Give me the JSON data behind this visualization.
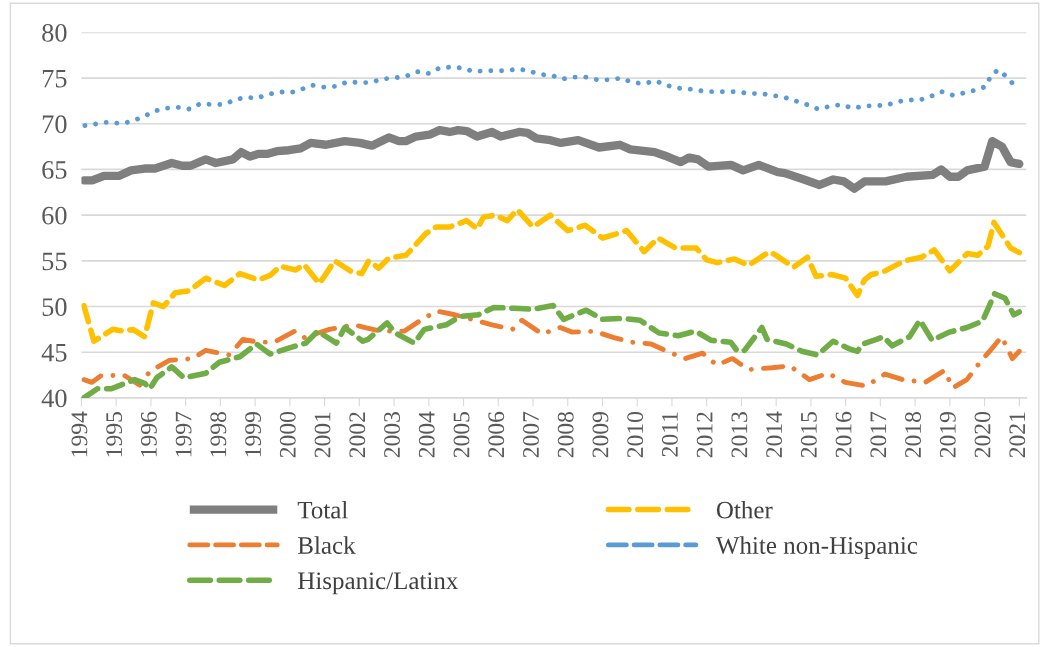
{
  "chart_data": {
    "type": "line",
    "xlim": [
      1994,
      2021.2
    ],
    "xticks": [
      1994,
      1995,
      1996,
      1997,
      1998,
      1999,
      2000,
      2001,
      2002,
      2003,
      2004,
      2005,
      2006,
      2007,
      2008,
      2009,
      2010,
      2011,
      2012,
      2013,
      2014,
      2015,
      2016,
      2017,
      2018,
      2019,
      2020,
      2021
    ],
    "ylim": [
      40,
      80
    ],
    "yticks": [
      40,
      45,
      50,
      55,
      60,
      65,
      70,
      75,
      80
    ],
    "grid": "y",
    "legend": "bottom",
    "series": [
      {
        "name": "Total",
        "color": "#7f7f7f",
        "line_style": "solid",
        "x": [
          1994.07,
          1994.31,
          1994.65,
          1995.09,
          1995.43,
          1995.82,
          1996.12,
          1996.6,
          1996.9,
          1997.14,
          1997.58,
          1997.87,
          1998.36,
          1998.6,
          1998.85,
          1999.09,
          1999.34,
          1999.63,
          1999.97,
          2000.31,
          2000.6,
          2001.04,
          2001.58,
          2002.02,
          2002.36,
          2002.85,
          2003.14,
          2003.34,
          2003.63,
          2004.02,
          2004.31,
          2004.6,
          2004.85,
          2005.09,
          2005.39,
          2005.82,
          2006.07,
          2006.6,
          2006.84,
          2007.1,
          2007.5,
          2007.8,
          2008.3,
          2008.9,
          2009.5,
          2009.8,
          2010.5,
          2010.8,
          2011.25,
          2011.5,
          2011.75,
          2012.05,
          2012.7,
          2013.05,
          2013.5,
          2014.05,
          2014.25,
          2014.8,
          2015.25,
          2015.65,
          2015.95,
          2016.25,
          2016.55,
          2017.15,
          2017.75,
          2018.5,
          2018.75,
          2019.0,
          2019.25,
          2019.5,
          2020.0,
          2020.22,
          2020.5,
          2020.75,
          2021.0
        ],
        "values": [
          63.8,
          63.8,
          64.3,
          64.3,
          64.9,
          65.1,
          65.1,
          65.7,
          65.4,
          65.4,
          66.1,
          65.7,
          66.1,
          66.9,
          66.4,
          66.7,
          66.7,
          67.0,
          67.1,
          67.3,
          67.9,
          67.7,
          68.1,
          67.9,
          67.6,
          68.5,
          68.1,
          68.1,
          68.6,
          68.8,
          69.3,
          69.1,
          69.3,
          69.2,
          68.6,
          69.1,
          68.6,
          69.1,
          69.0,
          68.4,
          68.2,
          67.9,
          68.2,
          67.4,
          67.7,
          67.2,
          66.9,
          66.5,
          65.8,
          66.3,
          66.1,
          65.3,
          65.5,
          64.9,
          65.5,
          64.7,
          64.6,
          63.9,
          63.3,
          63.9,
          63.7,
          62.9,
          63.7,
          63.7,
          64.2,
          64.4,
          65.0,
          64.2,
          64.2,
          64.9,
          65.3,
          68.1,
          67.5,
          65.8,
          65.6
        ]
      },
      {
        "name": "Black",
        "color": "#ed7d31",
        "line_style": "dashdot",
        "x": [
          1994.07,
          1994.3,
          1994.55,
          1995.22,
          1995.68,
          1995.97,
          1996.53,
          1997.19,
          1997.58,
          1998.26,
          1998.65,
          1999.09,
          1999.55,
          2000.14,
          2000.41,
          2001.14,
          2001.83,
          2002.17,
          2002.64,
          2003.0,
          2003.29,
          2003.73,
          2004.22,
          2004.75,
          2005.14,
          2005.82,
          2006.41,
          2006.68,
          2007.26,
          2007.78,
          2008.13,
          2008.76,
          2009.33,
          2009.83,
          2010.4,
          2010.98,
          2011.38,
          2011.88,
          2012.29,
          2012.74,
          2013.2,
          2013.89,
          2014.39,
          2014.96,
          2015.49,
          2015.99,
          2016.59,
          2017.13,
          2017.64,
          2018.29,
          2018.84,
          2019.09,
          2019.49,
          2019.89,
          2020.19,
          2020.49,
          2020.8,
          2021.0
        ],
        "values": [
          42.0,
          41.7,
          42.4,
          42.5,
          41.4,
          42.9,
          44.1,
          44.3,
          45.2,
          44.7,
          46.4,
          46.1,
          46.1,
          47.3,
          46.6,
          47.5,
          48.0,
          47.7,
          47.3,
          47.3,
          47.3,
          48.4,
          49.5,
          49.1,
          48.7,
          48.0,
          47.5,
          48.5,
          47.0,
          47.7,
          47.2,
          47.3,
          46.6,
          46.1,
          45.9,
          44.9,
          44.3,
          44.9,
          43.6,
          44.3,
          43.1,
          43.3,
          43.5,
          42.0,
          42.7,
          41.7,
          41.3,
          42.6,
          42.0,
          41.7,
          43.0,
          41.1,
          42.0,
          44.0,
          45.3,
          46.7,
          44.3,
          45.1
        ]
      },
      {
        "name": "Hispanic/Latinx",
        "color": "#70ad47",
        "line_style": "dashed",
        "x": [
          1994.07,
          1994.46,
          1994.85,
          1995.0,
          1995.53,
          1995.82,
          1995.97,
          1996.17,
          1996.6,
          1996.95,
          1997.58,
          1997.97,
          1998.56,
          1999.04,
          1999.43,
          1999.92,
          2000.46,
          2000.8,
          2001.34,
          2001.58,
          2002.1,
          2002.25,
          2002.8,
          2003.04,
          2003.58,
          2003.87,
          2004.5,
          2004.89,
          2005.43,
          2005.87,
          2006.46,
          2007.0,
          2007.58,
          2007.88,
          2008.53,
          2009.0,
          2009.58,
          2010.08,
          2010.63,
          2011.18,
          2011.68,
          2012.13,
          2012.69,
          2012.89,
          2013.09,
          2013.59,
          2013.74,
          2014.29,
          2014.74,
          2015.19,
          2015.64,
          2016.09,
          2016.34,
          2016.49,
          2016.89,
          2017.09,
          2017.34,
          2017.84,
          2018.14,
          2018.49,
          2018.99,
          2019.49,
          2019.94,
          2020.29,
          2020.59,
          2020.84,
          2021.0
        ],
        "values": [
          40.0,
          41.0,
          41.0,
          41.2,
          42.0,
          41.6,
          41.0,
          42.2,
          43.4,
          42.2,
          42.7,
          43.9,
          44.5,
          45.9,
          44.8,
          45.4,
          46.0,
          47.3,
          46.0,
          47.7,
          46.2,
          46.4,
          48.2,
          47.1,
          46.0,
          47.5,
          48.0,
          48.9,
          49.1,
          49.9,
          49.8,
          49.7,
          50.1,
          48.6,
          49.6,
          48.6,
          48.7,
          48.5,
          47.1,
          46.8,
          47.3,
          46.3,
          46.1,
          45.1,
          45.2,
          47.7,
          46.4,
          45.9,
          45.1,
          44.7,
          46.2,
          45.4,
          45.1,
          45.9,
          46.4,
          46.7,
          45.7,
          46.7,
          48.5,
          46.3,
          47.2,
          47.7,
          48.4,
          51.4,
          50.9,
          49.1,
          49.4
        ]
      },
      {
        "name": "Other",
        "color": "#ffc000",
        "line_style": "dashed",
        "x": [
          1994.07,
          1994.36,
          1994.9,
          1995.24,
          1995.48,
          1995.82,
          1996.07,
          1996.36,
          1996.7,
          1997.09,
          1997.58,
          1998.12,
          1998.56,
          1999.09,
          1999.43,
          1999.72,
          2000.17,
          2000.41,
          2000.85,
          2001.29,
          2001.78,
          2002.07,
          2002.27,
          2002.56,
          2002.85,
          2003.34,
          2003.92,
          2004.21,
          2004.6,
          2005.09,
          2005.39,
          2005.58,
          2005.92,
          2006.26,
          2006.55,
          2007.0,
          2007.5,
          2008.0,
          2008.5,
          2009.0,
          2009.7,
          2010.2,
          2010.6,
          2011.1,
          2011.7,
          2012.0,
          2012.3,
          2012.8,
          2013.2,
          2013.8,
          2014.0,
          2014.5,
          2014.9,
          2015.15,
          2015.6,
          2016.0,
          2016.34,
          2016.54,
          2016.74,
          2017.09,
          2017.69,
          2018.19,
          2018.55,
          2019.0,
          2019.5,
          2019.8,
          2020.1,
          2020.27,
          2020.75,
          2021.0
        ],
        "values": [
          50.1,
          46.2,
          47.5,
          47.3,
          47.5,
          46.7,
          50.4,
          50.0,
          51.5,
          51.7,
          53.1,
          52.3,
          53.6,
          52.9,
          53.4,
          54.4,
          54.0,
          54.6,
          52.5,
          55.0,
          53.8,
          53.6,
          55.0,
          54.2,
          55.3,
          55.6,
          58.0,
          58.7,
          58.7,
          59.4,
          58.5,
          59.8,
          60.0,
          59.4,
          60.6,
          58.7,
          60.0,
          58.3,
          58.9,
          57.5,
          58.3,
          56.0,
          57.5,
          56.4,
          56.4,
          55.1,
          54.8,
          55.2,
          54.5,
          56.0,
          55.6,
          54.3,
          55.4,
          53.3,
          53.5,
          53.1,
          51.2,
          52.9,
          53.5,
          53.8,
          55.0,
          55.4,
          56.2,
          53.9,
          55.8,
          55.6,
          56.6,
          59.2,
          56.4,
          55.9
        ]
      },
      {
        "name": "White non-Hispanic",
        "color": "#5b9bd5",
        "line_style": "dotted",
        "x": [
          1994.1,
          1994.46,
          1994.8,
          1995.14,
          1995.48,
          1995.8,
          1996.12,
          1996.43,
          1996.78,
          1997.12,
          1997.43,
          1997.76,
          1998.09,
          1998.41,
          1998.72,
          1999.04,
          1999.37,
          1999.7,
          2000.02,
          2000.36,
          2000.67,
          2000.99,
          2001.34,
          2001.66,
          2002.0,
          2002.33,
          2002.65,
          2002.99,
          2003.34,
          2003.66,
          2004.0,
          2004.31,
          2004.63,
          2004.97,
          2005.29,
          2005.63,
          2005.95,
          2006.26,
          2006.55,
          2006.88,
          2007.18,
          2007.53,
          2007.86,
          2008.19,
          2008.52,
          2008.87,
          2009.2,
          2009.54,
          2009.87,
          2010.2,
          2010.53,
          2010.85,
          2011.17,
          2011.5,
          2011.85,
          2012.2,
          2012.54,
          2012.88,
          2013.22,
          2013.57,
          2013.9,
          2014.23,
          2014.56,
          2014.88,
          2015.21,
          2015.54,
          2015.88,
          2016.2,
          2016.5,
          2016.83,
          2017.15,
          2017.48,
          2017.81,
          2018.13,
          2018.45,
          2018.77,
          2019.1,
          2019.43,
          2019.77,
          2020.05,
          2020.18,
          2020.4,
          2020.65,
          2020.88
        ],
        "values": [
          69.8,
          70.0,
          70.2,
          70.0,
          70.3,
          70.8,
          71.4,
          71.7,
          71.8,
          71.6,
          72.2,
          72.1,
          72.1,
          72.6,
          72.9,
          72.8,
          73.2,
          73.5,
          73.4,
          73.8,
          74.2,
          74.0,
          74.1,
          74.6,
          74.5,
          74.5,
          74.9,
          75.0,
          75.2,
          75.7,
          75.5,
          76.1,
          76.2,
          76.1,
          75.7,
          75.8,
          75.8,
          75.8,
          76.0,
          75.8,
          75.4,
          75.3,
          74.9,
          75.1,
          75.1,
          74.8,
          74.8,
          75.0,
          74.5,
          74.4,
          74.7,
          74.2,
          73.9,
          73.8,
          73.6,
          73.5,
          73.5,
          73.5,
          73.3,
          73.3,
          73.1,
          72.9,
          72.5,
          72.1,
          71.6,
          71.9,
          72.1,
          71.7,
          71.9,
          72.0,
          72.0,
          72.4,
          72.6,
          72.6,
          73.0,
          73.5,
          73.1,
          73.4,
          73.7,
          74.1,
          75.3,
          75.9,
          75.1,
          74.1
        ]
      }
    ]
  }
}
